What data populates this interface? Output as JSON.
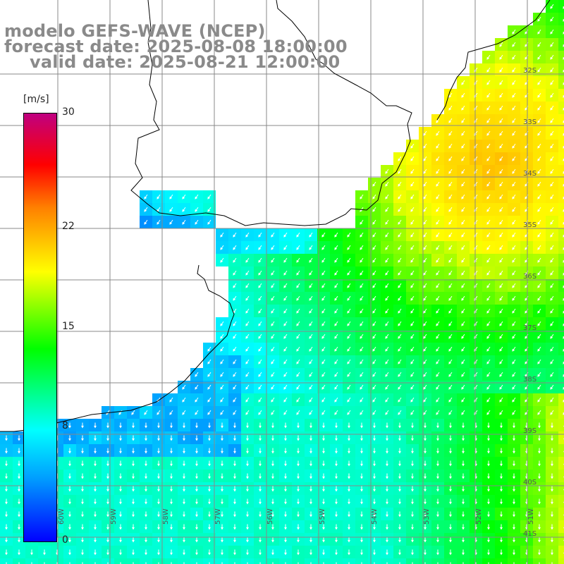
{
  "title": {
    "line1": "modelo GEFS-WAVE (NCEP)",
    "line2": "forecast date: 2025-08-08 18:00:00",
    "line3": "valid date: 2025-08-21 12:00:00"
  },
  "colorbar": {
    "unit": "[m/s]",
    "ticks": [
      "30",
      "22",
      "15",
      "8",
      "0"
    ],
    "tick_values": [
      30,
      22,
      15,
      8,
      0
    ],
    "min": 0,
    "max": 30,
    "colors": [
      "#0000ff",
      "#00a0ff",
      "#00ffff",
      "#00ff00",
      "#ffff00",
      "#ff8000",
      "#ff0000",
      "#c00080"
    ]
  },
  "axes": {
    "longitude_labels": [
      "60W",
      "59W",
      "58W",
      "57W",
      "56W",
      "55W",
      "54W",
      "53W",
      "52W",
      "51W"
    ],
    "latitude_labels": [
      "32S",
      "33S",
      "34S",
      "35S",
      "36S",
      "37S",
      "38S",
      "39S",
      "40S",
      "41S"
    ]
  }
}
